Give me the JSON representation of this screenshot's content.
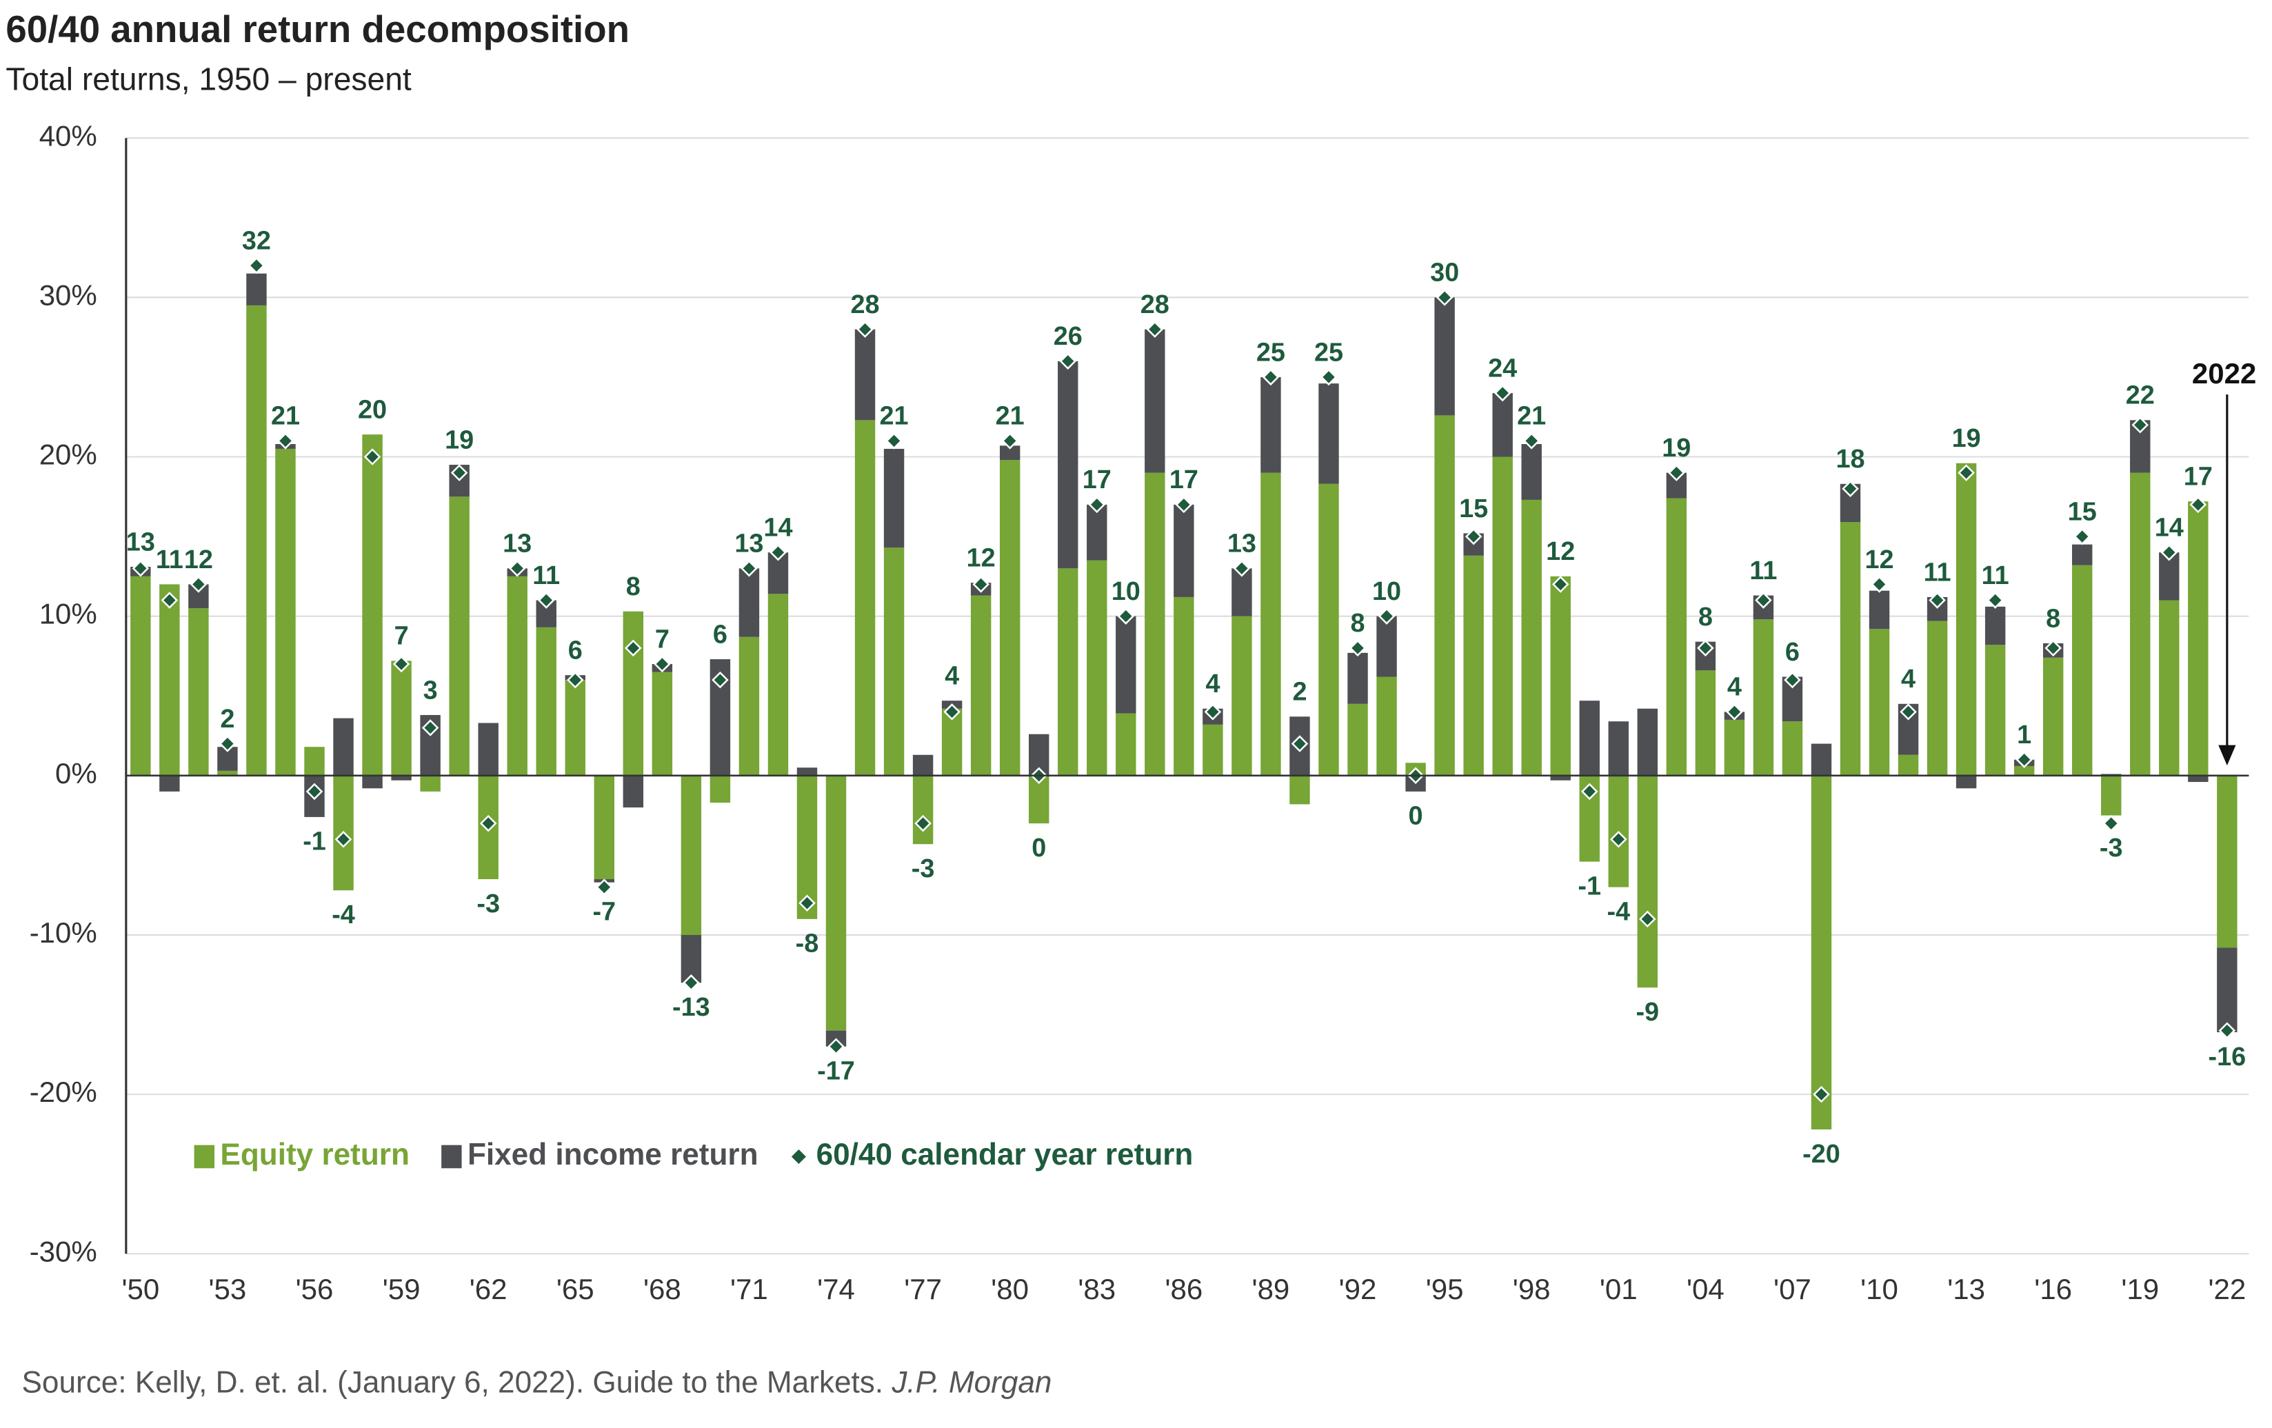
{
  "chart_data": {
    "type": "bar",
    "stacked": true,
    "title": "60/40 annual return decomposition",
    "subtitle": "Total returns, 1950 – present",
    "categories": [
      "'50",
      null,
      null,
      "'53",
      null,
      null,
      "'56",
      null,
      null,
      "'59",
      null,
      null,
      "'62",
      null,
      null,
      "'65",
      null,
      null,
      "'68",
      null,
      null,
      "'71",
      null,
      null,
      "'74",
      null,
      null,
      "'77",
      null,
      null,
      "'80",
      null,
      null,
      "'83",
      null,
      null,
      "'86",
      null,
      null,
      "'89",
      null,
      null,
      "'92",
      null,
      null,
      "'95",
      null,
      null,
      "'98",
      null,
      null,
      "'01",
      null,
      null,
      "'04",
      null,
      null,
      "'07",
      null,
      null,
      "'10",
      null,
      null,
      "'13",
      null,
      null,
      "'16",
      null,
      null,
      "'19",
      null,
      null,
      "'22"
    ],
    "series": [
      {
        "name": "Equity return",
        "color": "#77a536",
        "values": [
          12.5,
          12,
          10.5,
          0.3,
          29.5,
          20.5,
          1.8,
          -7.2,
          21.4,
          7.2,
          -1,
          17.5,
          -6.5,
          12.5,
          9.3,
          6,
          -6.5,
          10.3,
          6.5,
          -10,
          -1.7,
          8.7,
          11.4,
          -9,
          -16,
          22.3,
          14.3,
          -4.3,
          4.2,
          11.3,
          19.8,
          -3,
          13,
          13.5,
          3.9,
          19,
          11.2,
          3.2,
          10,
          19,
          -1.8,
          18.3,
          4.5,
          6.2,
          0.8,
          22.6,
          13.8,
          20,
          17.3,
          12.5,
          -5.4,
          -7,
          -13.3,
          17.4,
          6.6,
          3.5,
          9.8,
          3.4,
          -22.2,
          15.9,
          9.2,
          1.3,
          9.7,
          19.6,
          8.2,
          0.6,
          7.4,
          13.2,
          -2.5,
          19,
          11,
          17.2,
          -10.8
        ]
      },
      {
        "name": "Fixed income return",
        "color": "#4d4f53",
        "values": [
          0.6,
          -1,
          1.5,
          1.5,
          2,
          0.3,
          -2.6,
          3.6,
          -0.8,
          -0.3,
          3.8,
          2,
          3.3,
          0.5,
          1.7,
          0.3,
          -0.2,
          -2,
          0.5,
          -3,
          7.3,
          4.3,
          2.6,
          0.5,
          -1,
          5.7,
          6.2,
          1.3,
          0.5,
          0.8,
          0.9,
          2.6,
          13,
          3.5,
          6.1,
          9,
          5.8,
          1,
          3,
          6,
          3.7,
          6.3,
          3.2,
          3.8,
          -1,
          7.4,
          1.4,
          4,
          3.5,
          -0.3,
          4.7,
          3.4,
          4.2,
          1.6,
          1.8,
          0.5,
          1.5,
          2.8,
          2,
          2.4,
          2.4,
          3.2,
          1.5,
          -0.8,
          2.4,
          0.4,
          0.9,
          1.3,
          0.1,
          3.3,
          3,
          -0.4,
          -5.3
        ]
      },
      {
        "name": "60/40 calendar year return",
        "color": "#1e5a3c",
        "type": "scatter",
        "marker": "diamond",
        "values": [
          13,
          11,
          12,
          2,
          32,
          21,
          -1,
          -4,
          20,
          7,
          3,
          19,
          -3,
          13,
          11,
          6,
          -7,
          8,
          7,
          -13,
          6,
          13,
          14,
          -8,
          -17,
          28,
          21,
          -3,
          4,
          12,
          21,
          0,
          26,
          17,
          10,
          28,
          17,
          4,
          13,
          25,
          2,
          25,
          8,
          10,
          0,
          30,
          15,
          24,
          21,
          12,
          -1,
          -4,
          -9,
          19,
          8,
          4,
          11,
          6,
          -20,
          18,
          12,
          4,
          11,
          19,
          11,
          1,
          8,
          15,
          -3,
          22,
          14,
          17,
          -16
        ]
      }
    ],
    "ylim": [
      -30,
      40
    ],
    "yticks": [
      {
        "value": -30,
        "label": "-30%"
      },
      {
        "value": -20,
        "label": "-20%"
      },
      {
        "value": -10,
        "label": "-10%"
      },
      {
        "value": 0,
        "label": "0%"
      },
      {
        "value": 10,
        "label": "10%"
      },
      {
        "value": 20,
        "label": "20%"
      },
      {
        "value": 30,
        "label": "30%"
      },
      {
        "value": 40,
        "label": "40%"
      }
    ],
    "grid": true,
    "legend": "lower left",
    "annotation": {
      "text": "2022"
    },
    "source": {
      "text": "Source: Kelly, D. et. al. (January 6, 2022). Guide to the Markets.",
      "publication": "J.P. Morgan"
    }
  }
}
